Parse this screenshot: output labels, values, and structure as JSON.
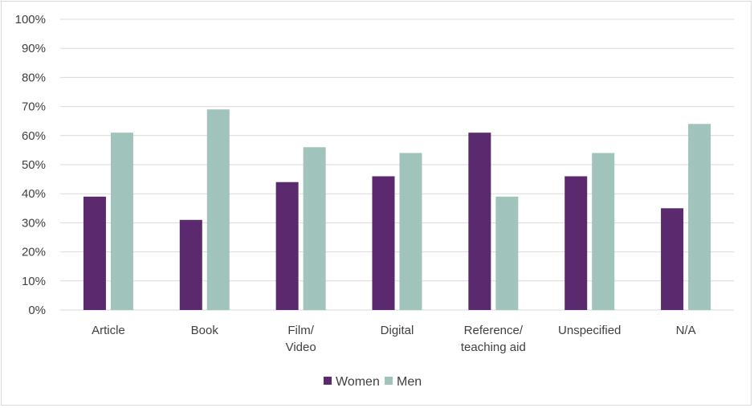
{
  "chart_data": {
    "type": "bar",
    "categories": [
      [
        "Article"
      ],
      [
        "Book"
      ],
      [
        "Film/",
        "Video"
      ],
      [
        "Digital"
      ],
      [
        "Reference/",
        "teaching aid"
      ],
      [
        "Unspecified"
      ],
      [
        "N/A"
      ]
    ],
    "series": [
      {
        "name": "Women",
        "color": "#5b2a6e",
        "values": [
          39,
          31,
          44,
          46,
          61,
          46,
          35
        ]
      },
      {
        "name": "Men",
        "color": "#a0c4bc",
        "values": [
          61,
          69,
          56,
          54,
          39,
          54,
          64
        ]
      }
    ],
    "yticks": [
      "0%",
      "10%",
      "20%",
      "30%",
      "40%",
      "50%",
      "60%",
      "70%",
      "80%",
      "90%",
      "100%"
    ],
    "ylim": [
      0,
      100
    ],
    "grid": true,
    "legend": "bottom-center"
  }
}
